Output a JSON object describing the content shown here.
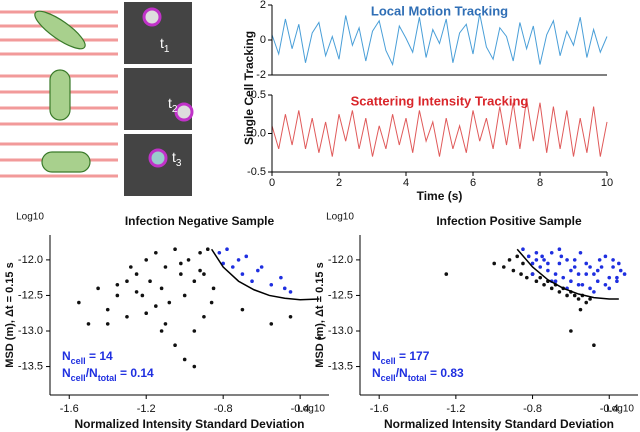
{
  "images": {
    "frames": [
      {
        "t": "t",
        "sub": "1"
      },
      {
        "t": "t",
        "sub": "2"
      },
      {
        "t": "t",
        "sub": "3"
      }
    ]
  },
  "chart_data": [
    {
      "type": "line",
      "title": "Local Motion Tracking",
      "title_color": "#2f6eb5",
      "ylabel": "Single Cell Tracking",
      "color": "#4a9fd8",
      "xlim": [
        0,
        10
      ],
      "ylim": [
        -2,
        2
      ],
      "yticks": [
        -2,
        0,
        2
      ],
      "x": [
        0,
        0.2,
        0.4,
        0.6,
        0.8,
        1,
        1.2,
        1.4,
        1.6,
        1.8,
        2,
        2.2,
        2.4,
        2.6,
        2.8,
        3,
        3.2,
        3.4,
        3.6,
        3.8,
        4,
        4.2,
        4.4,
        4.6,
        4.8,
        5,
        5.2,
        5.4,
        5.6,
        5.8,
        6,
        6.2,
        6.4,
        6.6,
        6.8,
        7,
        7.2,
        7.4,
        7.6,
        7.8,
        8,
        8.2,
        8.4,
        8.6,
        8.8,
        9,
        9.2,
        9.4,
        9.6,
        9.8,
        10
      ],
      "values": [
        0.3,
        -0.8,
        1.2,
        -0.5,
        0.9,
        -1.3,
        0.4,
        1.0,
        -0.9,
        0.2,
        -1.1,
        1.4,
        -0.3,
        0.7,
        -1.2,
        0.5,
        1.1,
        -0.6,
        -1.4,
        0.8,
        0.1,
        -0.7,
        1.3,
        -1.0,
        0.6,
        -0.2,
        1.2,
        -1.3,
        0.4,
        0.9,
        -0.8,
        1.5,
        -0.4,
        -1.1,
        0.7,
        0.2,
        -1.2,
        1.0,
        -0.5,
        0.8,
        -1.4,
        0.3,
        1.1,
        -0.9,
        0.5,
        -0.3,
        1.3,
        -1.0,
        0.6,
        -0.7,
        0.2
      ]
    },
    {
      "type": "line",
      "title": "Scattering Intensity Tracking",
      "title_color": "#d9262b",
      "xlabel": "Time (s)",
      "color": "#e05a5a",
      "xlim": [
        0,
        10
      ],
      "xticks": [
        0,
        2,
        4,
        6,
        8,
        10
      ],
      "ylim": [
        -0.5,
        0.5
      ],
      "yticks": [
        -0.5,
        {
          "value": 0,
          "label": "0.0"
        },
        0.5
      ],
      "x": [
        0,
        0.2,
        0.4,
        0.6,
        0.8,
        1,
        1.2,
        1.4,
        1.6,
        1.8,
        2,
        2.2,
        2.4,
        2.6,
        2.8,
        3,
        3.2,
        3.4,
        3.6,
        3.8,
        4,
        4.2,
        4.4,
        4.6,
        4.8,
        5,
        5.2,
        5.4,
        5.6,
        5.8,
        6,
        6.2,
        6.4,
        6.6,
        6.8,
        7,
        7.2,
        7.4,
        7.6,
        7.8,
        8,
        8.2,
        8.4,
        8.6,
        8.8,
        9,
        9.2,
        9.4,
        9.6,
        9.8,
        10
      ],
      "values": [
        0.1,
        -0.2,
        0.25,
        -0.15,
        0.3,
        -0.2,
        0.2,
        -0.25,
        0.15,
        -0.3,
        0.25,
        -0.1,
        0.3,
        -0.2,
        0.2,
        -0.3,
        0.1,
        -0.2,
        0.25,
        -0.15,
        0.2,
        -0.25,
        0.3,
        -0.1,
        0.15,
        -0.3,
        0.2,
        -0.2,
        0.1,
        -0.25,
        0.3,
        -0.1,
        0.2,
        -0.2,
        0.35,
        -0.15,
        0.4,
        -0.2,
        0.45,
        -0.1,
        0.4,
        -0.25,
        0.35,
        -0.2,
        0.3,
        -0.3,
        0.2,
        -0.25,
        0.35,
        -0.3,
        0.15
      ]
    },
    {
      "type": "scatter",
      "title": "Infection Negative Sample",
      "xlabel": "Normalized Intensity Standard Deviation",
      "ylabel": "MSD (m), Δt = 0.15 s",
      "x_unit": "Log10",
      "y_unit": "Log10",
      "xlim": [
        -1.7,
        -0.25
      ],
      "ylim": [
        -13.9,
        -11.65
      ],
      "xticks": [
        -1.6,
        -1.2,
        -0.8,
        -0.4
      ],
      "yticks": [
        {
          "value": -12,
          "label": "-12.0"
        },
        -12.5,
        {
          "value": -13,
          "label": "-13.0"
        },
        -13.5
      ],
      "series": [
        {
          "color": "#111111",
          "x": [
            -1.55,
            -1.5,
            -1.45,
            -1.4,
            -1.35,
            -1.3,
            -1.3,
            -1.25,
            -1.22,
            -1.2,
            -1.18,
            -1.15,
            -1.12,
            -1.1,
            -1.08,
            -1.05,
            -1.02,
            -1.0,
            -0.98,
            -0.95,
            -0.92,
            -0.9,
            -0.88,
            -0.86,
            -0.85,
            -1.1,
            -1.05,
            -0.95,
            -1.2,
            -1.28,
            -1.4,
            -1.0,
            -0.9,
            -0.95,
            -1.15,
            -1.35,
            -0.7,
            -0.55,
            -0.45,
            -0.3,
            -1.02,
            -0.92,
            -1.25,
            -1.12
          ],
          "y": [
            -12.6,
            -12.9,
            -12.4,
            -12.7,
            -12.5,
            -12.3,
            -12.8,
            -12.2,
            -12.5,
            -12.0,
            -12.3,
            -11.9,
            -12.4,
            -12.1,
            -12.6,
            -11.85,
            -12.2,
            -12.5,
            -12.0,
            -12.3,
            -11.9,
            -12.2,
            -11.85,
            -12.6,
            -12.4,
            -12.9,
            -13.2,
            -13.0,
            -12.75,
            -12.1,
            -12.9,
            -13.4,
            -12.8,
            -13.5,
            -12.65,
            -12.35,
            -12.7,
            -12.9,
            -12.8,
            -13.1,
            -12.05,
            -12.15,
            -12.45,
            -13.0
          ]
        },
        {
          "color": "#1f2fe0",
          "x": [
            -0.82,
            -0.8,
            -0.78,
            -0.75,
            -0.72,
            -0.7,
            -0.68,
            -0.65,
            -0.62,
            -0.6,
            -0.55,
            -0.5,
            -0.48,
            -0.45
          ],
          "y": [
            -11.9,
            -12.05,
            -11.85,
            -12.1,
            -12.0,
            -12.2,
            -11.95,
            -12.3,
            -12.15,
            -12.1,
            -12.35,
            -12.25,
            -12.4,
            -12.45
          ]
        }
      ],
      "curve": {
        "x": [
          -0.86,
          -0.8,
          -0.72,
          -0.64,
          -0.56,
          -0.48,
          -0.4,
          -0.3
        ],
        "y": [
          -11.85,
          -12.1,
          -12.3,
          -12.42,
          -12.5,
          -12.54,
          -12.56,
          -12.55
        ]
      },
      "annotation_color": "#1f2fe0",
      "annotation": [
        [
          {
            "text": "N"
          },
          {
            "sub": "cell"
          },
          {
            "text": " = 14"
          }
        ],
        [
          {
            "text": "N"
          },
          {
            "sub": "cell"
          },
          {
            "text": "/N"
          },
          {
            "sub": "total"
          },
          {
            "text": " = 0.14"
          }
        ]
      ]
    },
    {
      "type": "scatter",
      "title": "Infection Positive Sample",
      "xlabel": "Normalized Intensity Standard Deviation",
      "ylabel": "MSD (m), Δt = 0.15 s",
      "x_unit": "Log10",
      "y_unit": "Log10",
      "xlim": [
        -1.7,
        -0.25
      ],
      "ylim": [
        -13.9,
        -11.65
      ],
      "xticks": [
        -1.6,
        -1.2,
        -0.8,
        -0.4
      ],
      "yticks": [
        {
          "value": -12,
          "label": "-12.0"
        },
        -12.5,
        {
          "value": -13,
          "label": "-13.0"
        },
        -13.5
      ],
      "series": [
        {
          "color": "#111111",
          "x": [
            -1.25,
            -1.0,
            -0.95,
            -0.92,
            -0.9,
            -0.88,
            -0.86,
            -0.85,
            -0.83,
            -0.8,
            -0.78,
            -0.76,
            -0.74,
            -0.72,
            -0.7,
            -0.68,
            -0.66,
            -0.64,
            -0.62,
            -0.6,
            -0.58,
            -0.56,
            -0.54,
            -0.52,
            -0.5,
            -0.55,
            -0.6,
            -0.48
          ],
          "y": [
            -12.2,
            -12.05,
            -12.1,
            -12.0,
            -12.15,
            -11.95,
            -12.2,
            -12.05,
            -12.25,
            -12.2,
            -12.3,
            -12.25,
            -12.35,
            -12.3,
            -12.4,
            -12.35,
            -12.45,
            -12.4,
            -12.5,
            -12.45,
            -12.5,
            -12.55,
            -12.5,
            -12.6,
            -12.55,
            -12.7,
            -13.0,
            -13.2
          ]
        },
        {
          "color": "#1f2fe0",
          "x": [
            -0.85,
            -0.82,
            -0.8,
            -0.78,
            -0.76,
            -0.74,
            -0.72,
            -0.7,
            -0.68,
            -0.66,
            -0.64,
            -0.62,
            -0.6,
            -0.58,
            -0.56,
            -0.54,
            -0.52,
            -0.5,
            -0.48,
            -0.46,
            -0.44,
            -0.42,
            -0.4,
            -0.38,
            -0.36,
            -0.34,
            -0.32,
            -0.8,
            -0.75,
            -0.7,
            -0.65,
            -0.6,
            -0.55,
            -0.5,
            -0.45,
            -0.4,
            -0.35,
            -0.72,
            -0.62,
            -0.52,
            -0.42,
            -0.78,
            -0.68,
            -0.58,
            -0.48,
            -0.38,
            -0.66,
            -0.56,
            -0.46,
            -0.36
          ],
          "y": [
            -11.85,
            -11.95,
            -12.05,
            -11.9,
            -12.1,
            -12.0,
            -12.15,
            -11.9,
            -12.2,
            -12.05,
            -12.25,
            -12.0,
            -12.3,
            -12.1,
            -12.2,
            -12.35,
            -12.05,
            -12.4,
            -12.2,
            -12.3,
            -12.1,
            -12.35,
            -12.25,
            -12.0,
            -12.3,
            -12.15,
            -12.2,
            -12.2,
            -11.95,
            -12.3,
            -11.95,
            -12.15,
            -11.9,
            -12.1,
            -12.0,
            -12.4,
            -12.05,
            -12.05,
            -12.4,
            -12.2,
            -11.95,
            -12.0,
            -12.3,
            -12.0,
            -12.45,
            -12.1,
            -11.85,
            -12.35,
            -12.15,
            -12.25
          ]
        }
      ],
      "curve": {
        "x": [
          -0.88,
          -0.8,
          -0.72,
          -0.64,
          -0.56,
          -0.48,
          -0.4,
          -0.35
        ],
        "y": [
          -11.85,
          -12.1,
          -12.28,
          -12.4,
          -12.48,
          -12.53,
          -12.55,
          -12.55
        ]
      },
      "annotation_color": "#1f2fe0",
      "annotation": [
        [
          {
            "text": "N"
          },
          {
            "sub": "cell"
          },
          {
            "text": " = 177"
          }
        ],
        [
          {
            "text": "N"
          },
          {
            "sub": "cell"
          },
          {
            "text": "/N"
          },
          {
            "sub": "total"
          },
          {
            "text": " = 0.83"
          }
        ]
      ]
    }
  ]
}
